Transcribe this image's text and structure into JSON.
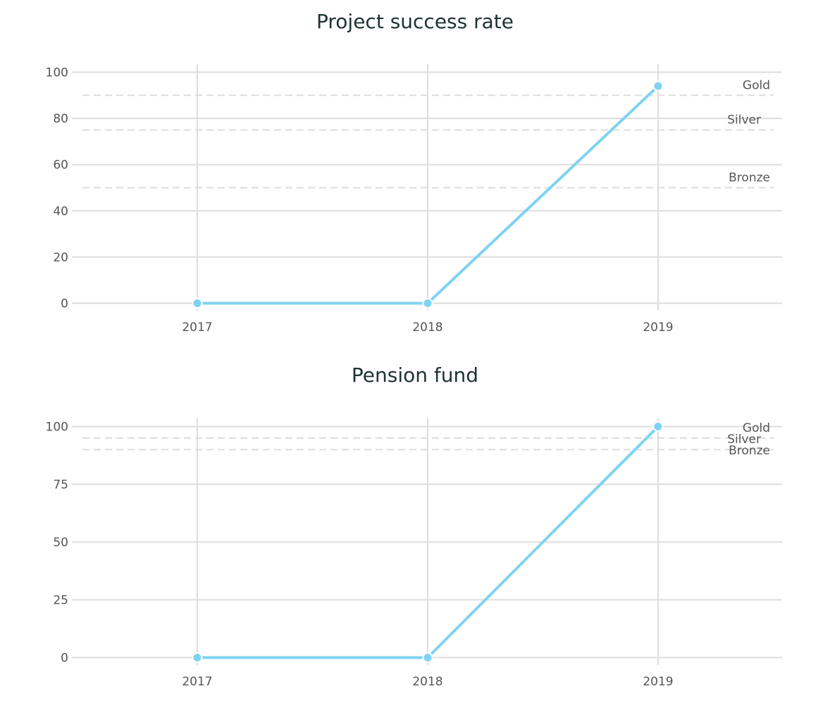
{
  "chart_data": [
    {
      "type": "line",
      "title": "Project success rate",
      "categories": [
        "2017",
        "2018",
        "2019"
      ],
      "series": [
        {
          "values": [
            0,
            0,
            94
          ]
        }
      ],
      "yticks": [
        0,
        20,
        40,
        60,
        80,
        100
      ],
      "ylim": [
        0,
        100
      ],
      "thresholds": [
        {
          "label": "Gold",
          "value": 90
        },
        {
          "label": "Silver",
          "value": 75
        },
        {
          "label": "Bronze",
          "value": 50
        }
      ],
      "grid": true,
      "line_color": "#7fd3f2"
    },
    {
      "type": "line",
      "title": "Pension fund",
      "categories": [
        "2017",
        "2018",
        "2019"
      ],
      "series": [
        {
          "values": [
            0,
            0,
            100
          ]
        }
      ],
      "yticks": [
        0,
        25,
        50,
        75,
        100
      ],
      "ylim": [
        0,
        100
      ],
      "thresholds": [
        {
          "label": "Gold",
          "value": 95
        },
        {
          "label": "Silver",
          "value": 95
        },
        {
          "label": "Bronze",
          "value": 90
        }
      ],
      "grid": true,
      "line_color": "#7fd3f2"
    }
  ]
}
